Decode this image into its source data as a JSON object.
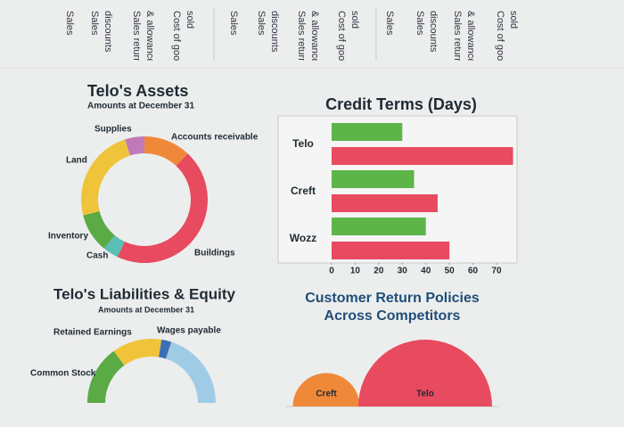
{
  "header_columns": [
    [
      "Sales"
    ],
    [
      "Sales",
      "discounts"
    ],
    [
      "Sales returns",
      "& allowances"
    ],
    [
      "Cost of goods",
      "sold"
    ],
    [
      "Sales"
    ],
    [
      "Sales",
      "discounts"
    ],
    [
      "Sales returns",
      "& allowances"
    ],
    [
      "Cost of goods",
      "sold"
    ],
    [
      "Sales"
    ],
    [
      "Sales",
      "discounts"
    ],
    [
      "Sales returns",
      "& allowances"
    ],
    [
      "Cost of goods",
      "sold"
    ]
  ],
  "chart_data": [
    {
      "type": "pie",
      "donut": true,
      "half": false,
      "title": "Telo's Assets",
      "subtitle": "Amounts at December 31",
      "labels": [
        "Supplies",
        "Accounts receivable",
        "Buildings",
        "Cash",
        "Inventory",
        "Land"
      ],
      "values": [
        5,
        12,
        45,
        4,
        10,
        24
      ],
      "colors": [
        "#c07ab8",
        "#f0883a",
        "#e84a5f",
        "#5bbfb5",
        "#5aaa46",
        "#f0c43a"
      ]
    },
    {
      "type": "hbar",
      "title": "Credit Terms (Days)",
      "categories": [
        "Telo",
        "Creft",
        "Wozz"
      ],
      "series": [
        {
          "color": "#5db54a",
          "values": [
            30,
            35,
            40
          ]
        },
        {
          "color": "#e84a5f",
          "values": [
            77,
            45,
            50
          ]
        }
      ],
      "xlim": [
        0,
        80
      ],
      "xticks": [
        0,
        10,
        20,
        30,
        40,
        50,
        60,
        70
      ]
    },
    {
      "type": "pie",
      "donut": true,
      "half": true,
      "title": "Telo's Liabilities & Equity",
      "subtitle": "Amounts at December 31",
      "labels": [
        "Common Stock",
        "Retained Earnings",
        "Wages payable",
        null
      ],
      "values": [
        30,
        25,
        5,
        40
      ],
      "colors": [
        "#5aaa46",
        "#f0c43a",
        "#3a6fb5",
        "#9fcbe6"
      ]
    },
    {
      "type": "bubble",
      "title": [
        "Customer Return Policies",
        "Across Competitors"
      ],
      "categories": [
        "Creft",
        "Telo"
      ],
      "values": [
        15,
        30
      ],
      "colors": [
        "#f0883a",
        "#e84a5f"
      ]
    }
  ]
}
